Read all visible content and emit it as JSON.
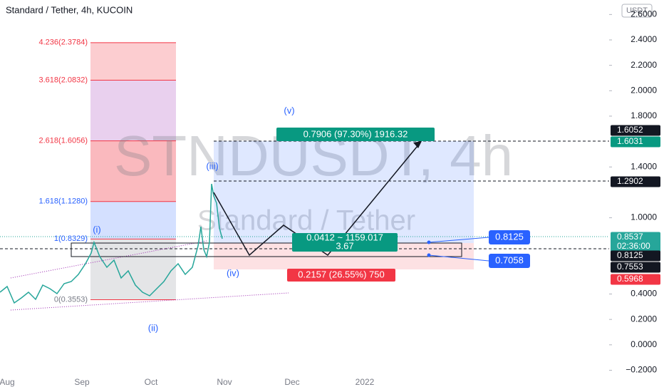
{
  "header": {
    "title": "Standard / Tether, 4h, KUCOIN",
    "currency": "USDT"
  },
  "watermark": {
    "symbol": "STNDUSDT, 4h",
    "name": "Standard / Tether"
  },
  "price_axis": {
    "ylim": [
      -0.2703,
      2.7141
    ],
    "ticks": [
      {
        "value": 2.6,
        "label": "2.6000"
      },
      {
        "value": 2.4,
        "label": "2.4000"
      },
      {
        "value": 2.2,
        "label": "2.2000"
      },
      {
        "value": 2,
        "label": "2.0000"
      },
      {
        "value": 1.8,
        "label": "1.8000"
      },
      {
        "value": 1.4,
        "label": "1.4000"
      },
      {
        "value": 1,
        "label": "1.0000"
      },
      {
        "value": 0.4,
        "label": "0.4000"
      },
      {
        "value": 0.2,
        "label": "0.2000"
      },
      {
        "value": 0,
        "label": "0.0000"
      },
      {
        "value": -0.2,
        "label": "−0.2000"
      }
    ]
  },
  "price_tags": [
    {
      "label": "1.6052",
      "color": "#131722"
    },
    {
      "label": "1.6031",
      "color": "#089981"
    },
    {
      "label": "1.2902",
      "color": "#131722"
    },
    {
      "label": "0.8537",
      "sub": "02:36:00",
      "color": "#26a69a"
    },
    {
      "label": "0.8125",
      "color": "#131722"
    },
    {
      "label": "0.7553",
      "color": "#131722"
    },
    {
      "label": "0.5968",
      "color": "#f23645"
    }
  ],
  "time_axis": [
    "Aug",
    "Sep",
    "Oct",
    "Nov",
    "Dec",
    "2022"
  ],
  "fib_levels": [
    {
      "value": 2.3784,
      "label": "4.236(2.3784)"
    },
    {
      "value": 2.0832,
      "label": "3.618(2.0832)"
    },
    {
      "value": 1.6056,
      "label": "2.618(1.6056)"
    },
    {
      "value": 1.128,
      "label": "1.618(1.1280)"
    },
    {
      "value": 0.8329,
      "label": "1(0.8329)"
    },
    {
      "value": 0.3553,
      "label": "0(0.3553)"
    }
  ],
  "waves": [
    "(i)",
    "(ii)",
    "(iii)",
    "(iv)",
    "(v)"
  ],
  "position": {
    "target": "0.7906 (97.30%) 1916.32",
    "entry": "0.0412 ~ 1159.017",
    "ratio": "3.67",
    "stop": "0.2157 (26.55%) 750"
  },
  "callouts": [
    "0.8125",
    "0.7058"
  ]
}
